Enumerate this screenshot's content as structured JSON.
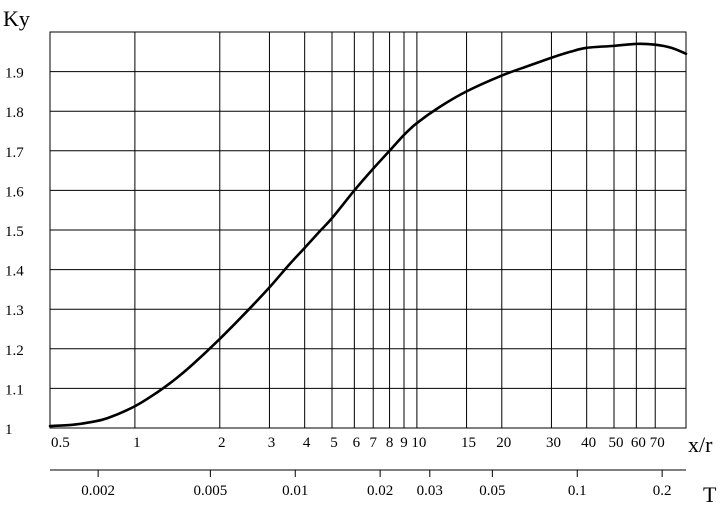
{
  "chart_data": {
    "type": "line",
    "ylabel": "Ky",
    "xlabel": "x/r",
    "secondary_xlabel": "T",
    "xscale": "log",
    "secondary_xscale": "log",
    "grid": true,
    "legend": "none",
    "xlim": [
      0.5,
      90
    ],
    "ylim": [
      1.0,
      2.0
    ],
    "x_ticks": [
      0.5,
      1,
      2,
      3,
      4,
      5,
      6,
      7,
      8,
      9,
      10,
      15,
      20,
      30,
      40,
      50,
      60,
      70
    ],
    "x_tick_labels": [
      "0.5",
      "1",
      "2",
      "3",
      "4",
      "5",
      "6",
      "7",
      "8",
      "9",
      "10",
      "15",
      "20",
      "30",
      "40",
      "50",
      "60",
      "70"
    ],
    "y_ticks": [
      1.0,
      1.1,
      1.2,
      1.3,
      1.4,
      1.5,
      1.6,
      1.7,
      1.8,
      1.9
    ],
    "y_tick_labels": [
      "1",
      "1.1",
      "1.2",
      "1.3",
      "1.4",
      "1.5",
      "1.6",
      "1.7",
      "1.8",
      "1.9"
    ],
    "secondary_ticks": [
      0.002,
      0.005,
      0.01,
      0.02,
      0.03,
      0.05,
      0.1,
      0.2
    ],
    "secondary_tick_labels": [
      "0.002",
      "0.005",
      "0.01",
      "0.02",
      "0.03",
      "0.05",
      "0.1",
      "0.2"
    ],
    "series": [
      {
        "x": [
          0.5,
          0.6,
          0.7,
          0.8,
          1,
          1.2,
          1.4,
          1.6,
          2,
          2.5,
          3,
          3.5,
          4,
          4.5,
          5,
          6,
          7,
          8,
          9,
          10,
          12,
          15,
          20,
          25,
          30,
          35,
          40,
          50,
          60,
          70,
          80,
          90
        ],
        "y": [
          1.005,
          1.008,
          1.015,
          1.025,
          1.055,
          1.09,
          1.125,
          1.16,
          1.225,
          1.295,
          1.355,
          1.41,
          1.455,
          1.495,
          1.53,
          1.6,
          1.655,
          1.7,
          1.74,
          1.77,
          1.81,
          1.85,
          1.89,
          1.915,
          1.935,
          1.95,
          1.96,
          1.965,
          1.97,
          1.968,
          1.96,
          1.945
        ]
      }
    ],
    "secondary_axis_unit_scale": 0.0027
  }
}
